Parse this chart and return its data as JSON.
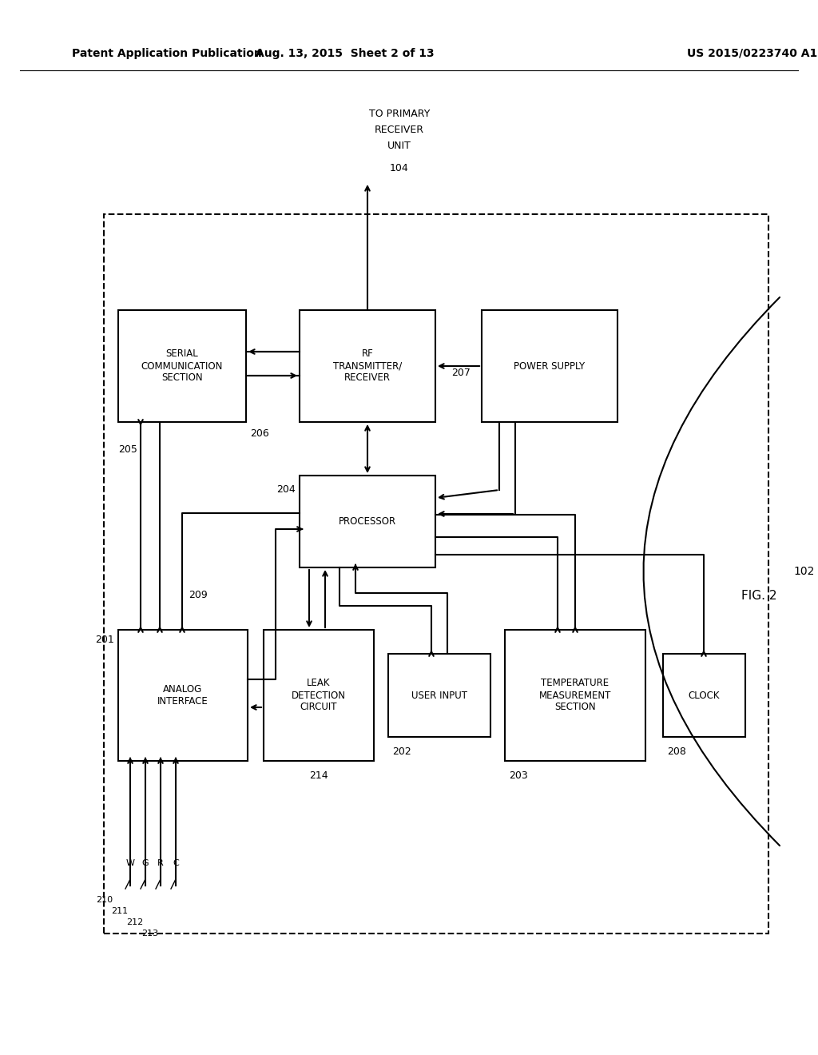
{
  "header_left": "Patent Application Publication",
  "header_mid": "Aug. 13, 2015  Sheet 2 of 13",
  "header_right": "US 2015/0223740 A1",
  "fig_label": "FIG. 2",
  "background": "#ffffff",
  "wire_letters": [
    "W",
    "G",
    "R",
    "C"
  ],
  "wire_refs": [
    "210",
    "211",
    "212",
    "213"
  ]
}
